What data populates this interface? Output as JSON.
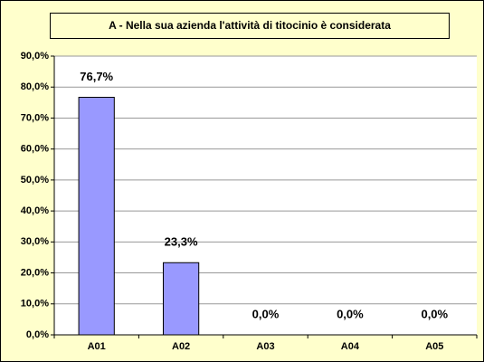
{
  "chart_data": {
    "type": "bar",
    "title": "A - Nella sua azienda l'attività di titocinio è considerata",
    "categories": [
      "A01",
      "A02",
      "A03",
      "A04",
      "A05"
    ],
    "values": [
      76.7,
      23.3,
      0,
      0,
      0
    ],
    "value_labels": [
      "76,7%",
      "23,3%",
      "0,0%",
      "0,0%",
      "0,0%"
    ],
    "color": "#9999ff",
    "ylim": [
      0,
      90
    ],
    "yticks": [
      {
        "value": 0,
        "label": "0,0%"
      },
      {
        "value": 10,
        "label": "10,0%"
      },
      {
        "value": 20,
        "label": "20,0%"
      },
      {
        "value": 30,
        "label": "30,0%"
      },
      {
        "value": 40,
        "label": "40,0%"
      },
      {
        "value": 50,
        "label": "50,0%"
      },
      {
        "value": 60,
        "label": "60,0%"
      },
      {
        "value": 70,
        "label": "70,0%"
      },
      {
        "value": 80,
        "label": "80,0%"
      },
      {
        "value": 90,
        "label": "90,0%"
      }
    ],
    "grid": true
  }
}
